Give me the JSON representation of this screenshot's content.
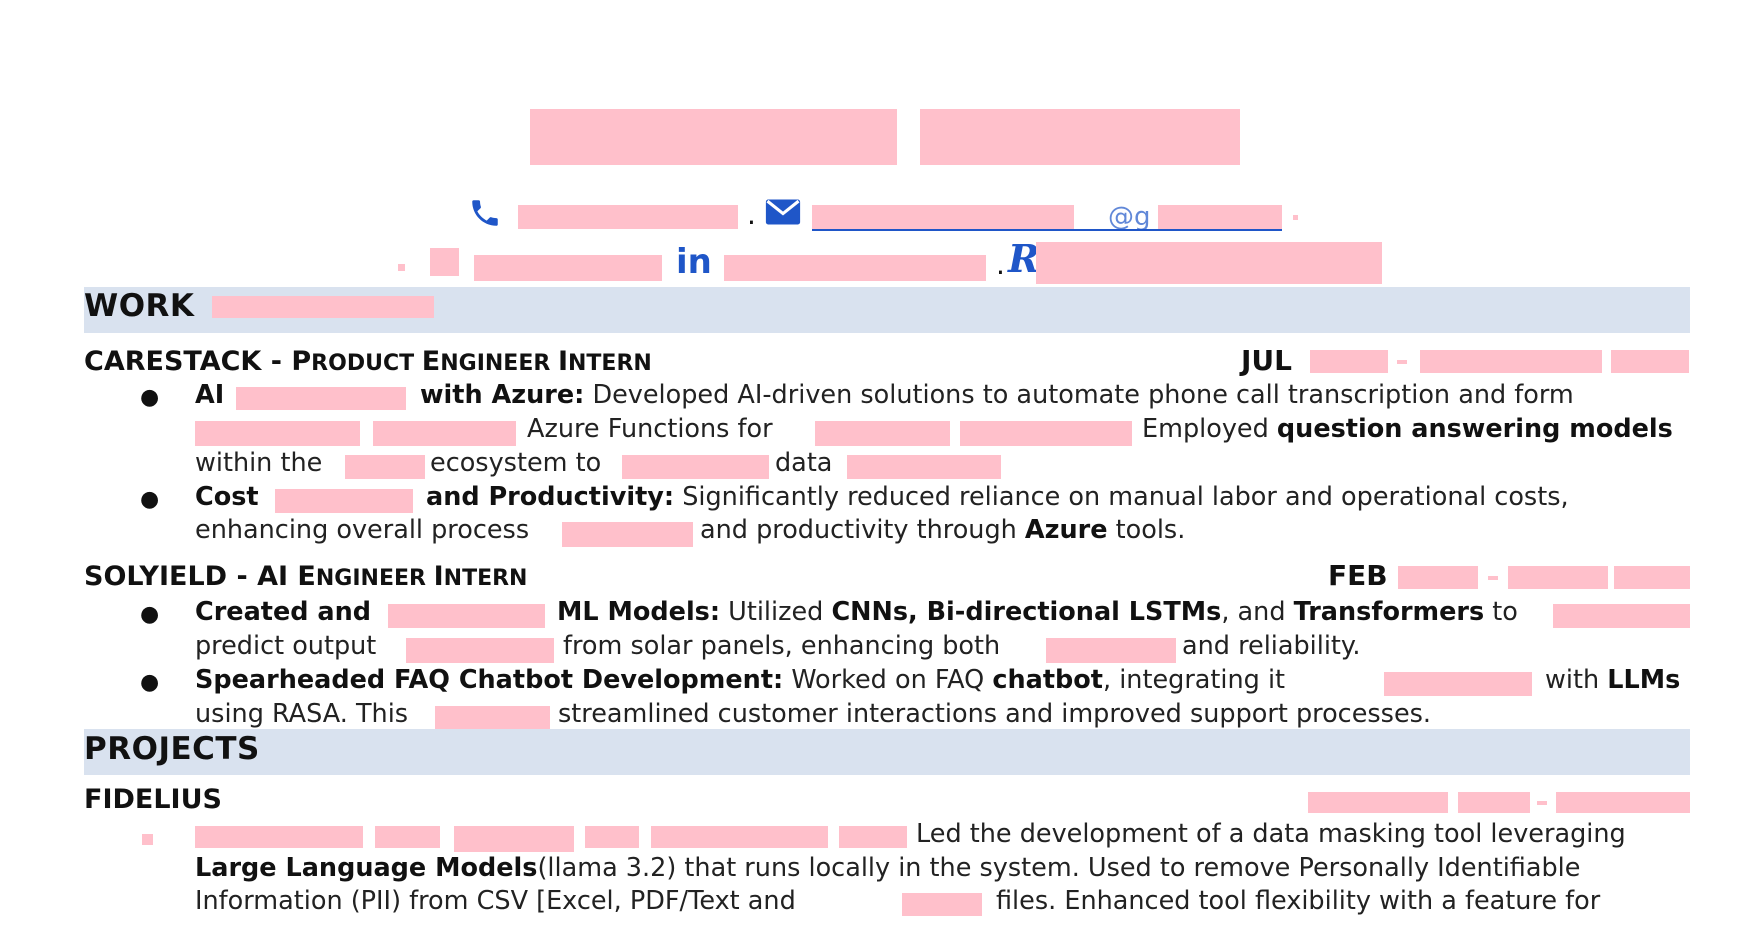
{
  "contact": {
    "email_partial": "@g",
    "linkedin_icon_text": "in",
    "separator": "."
  },
  "sections": {
    "work": "WORK",
    "projects": "PROJECTS"
  },
  "jobs": [
    {
      "company": "CARESTACK",
      "dash": " - ",
      "title_caps": [
        "P",
        "RODUCT ",
        "E",
        "NGINEER ",
        "I",
        "NTERN"
      ],
      "date_prefix": "JUL",
      "lines": [
        {
          "b1": "AI",
          "b2": "with Azure:",
          "t1": "Developed AI-driven solutions to automate phone call transcription and form"
        },
        {
          "t1": "Azure Functions for",
          "t2": "Employed",
          "b1": "question answering models"
        },
        {
          "t1": "within the",
          "t2": "ecosystem to",
          "t3": "data"
        },
        {
          "b1": "Cost",
          "b2": "and Productivity:",
          "t1": "Significantly reduced reliance on manual labor and operational costs,"
        },
        {
          "t1": "enhancing overall process",
          "t2": "and productivity through",
          "b1": "Azure",
          "t3": "tools."
        }
      ]
    },
    {
      "company": "SOLYIELD",
      "dash": " -  ",
      "title_caps": [
        "AI ",
        "E",
        "NGINEER ",
        "I",
        "NTERN"
      ],
      "date_prefix": "FEB",
      "lines": [
        {
          "b1": "Created and",
          "b2": "ML Models:",
          "t1": "Utilized",
          "b3": "CNNs, Bi-directional LSTMs",
          "t2": ", and",
          "b4": "Transformers",
          "t3": "to"
        },
        {
          "t1": "predict output",
          "t2": "from solar panels, enhancing both",
          "t3": "and reliability."
        },
        {
          "b1": "Spearheaded FAQ Chatbot Development:",
          "t1": "Worked on FAQ",
          "b2": "chatbot",
          "t2": ", integrating it",
          "t3": "with",
          "b3": "LLMs"
        },
        {
          "t1": "using RASA. This",
          "t2": "streamlined customer interactions and improved support processes."
        }
      ]
    }
  ],
  "project": {
    "name": "FIDELIUS",
    "lines": [
      {
        "t1": "Led the development of a data masking tool leveraging"
      },
      {
        "b1": "Large Language Models",
        "t1": "(llama 3.2) that runs locally in the system. Used to remove Personally Identifiable"
      },
      {
        "t1": "Information (PII) from CSV [Excel, PDF/Text and",
        "t2": "files.  Enhanced tool flexibility with a feature for"
      }
    ]
  },
  "colors": {
    "redaction": "#ffc0cb",
    "band": "#d9e2ef",
    "link": "#1f56c8"
  }
}
